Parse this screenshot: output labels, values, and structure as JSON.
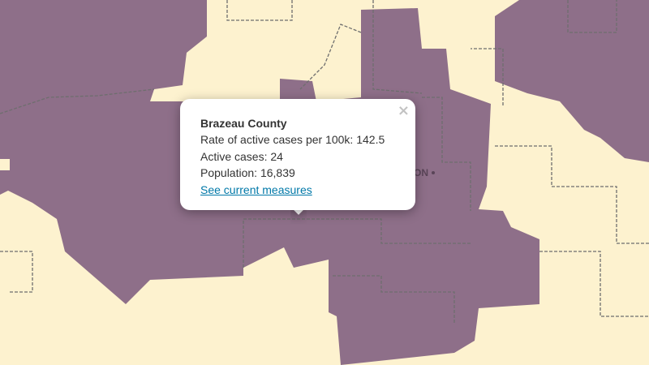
{
  "map_label": "ON",
  "popup": {
    "title": "Brazeau County",
    "lines": [
      "Rate of active cases per 100k: 142.5",
      "Active cases: 24",
      "Population: 16,839"
    ],
    "link": "See current measures"
  }
}
